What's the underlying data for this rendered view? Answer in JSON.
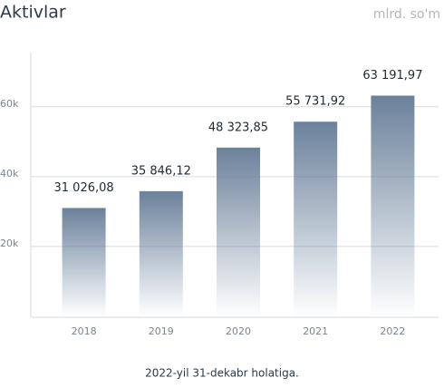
{
  "chart_data": {
    "type": "bar",
    "title": "Aktivlar",
    "unit": "mlrd. so'm",
    "caption": "2022-yil 31-dekabr holatiga.",
    "categories": [
      "2018",
      "2019",
      "2020",
      "2021",
      "2022"
    ],
    "values": [
      31026.08,
      35846.12,
      48323.85,
      55731.92,
      63191.97
    ],
    "value_labels": [
      "31 026,08",
      "35 846,12",
      "48 323,85",
      "55 731,92",
      "63 191,97"
    ],
    "color": "#6b819b",
    "ylim": [
      0,
      75000
    ],
    "yticks": [
      {
        "value": 20000,
        "label": "20k"
      },
      {
        "value": 40000,
        "label": "40k"
      },
      {
        "value": 60000,
        "label": "60k"
      }
    ],
    "grid": true
  }
}
